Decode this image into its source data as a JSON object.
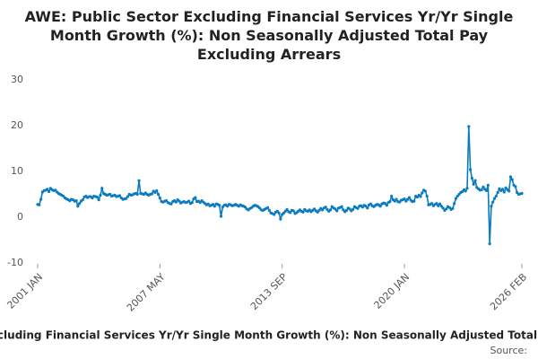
{
  "chart_data": {
    "type": "line",
    "title": "AWE: Public Sector Excluding Financial Services Yr/Yr Single Month Growth (%): Non Seasonally Adjusted Total Pay Excluding Arrears",
    "source": "Source:",
    "categories": [
      "2001 JAN",
      null,
      null,
      null,
      null,
      null,
      null,
      null,
      null,
      null,
      null,
      null,
      null,
      null,
      null,
      null,
      null,
      null,
      null,
      null,
      null,
      null,
      null,
      null,
      null,
      null,
      null,
      null,
      null,
      null,
      null,
      null,
      null,
      null,
      null,
      null,
      null,
      null,
      null,
      null,
      null,
      null,
      null,
      null,
      null,
      null,
      null,
      null,
      null,
      null,
      null,
      null,
      null,
      null,
      null,
      null,
      null,
      null,
      null,
      null,
      null,
      null,
      null,
      null,
      null,
      null,
      null,
      null,
      null,
      null,
      null,
      null,
      null,
      null,
      null,
      null,
      "2007 MAY",
      null,
      null,
      null,
      null,
      null,
      null,
      null,
      null,
      null,
      null,
      null,
      null,
      null,
      null,
      null,
      null,
      null,
      null,
      null,
      null,
      null,
      null,
      null,
      null,
      null,
      null,
      null,
      null,
      null,
      null,
      null,
      null,
      null,
      null,
      null,
      null,
      null,
      null,
      null,
      null,
      null,
      null,
      null,
      null,
      null,
      null,
      null,
      null,
      null,
      null,
      null,
      null,
      null,
      null,
      null,
      null,
      null,
      null,
      null,
      null,
      null,
      null,
      null,
      null,
      null,
      null,
      null,
      null,
      null,
      null,
      null,
      null,
      null,
      null,
      null,
      "2013 SEP",
      null,
      null,
      null,
      null,
      null,
      null,
      null,
      null,
      null,
      null,
      null,
      null,
      null,
      null,
      null,
      null,
      null,
      null,
      null,
      null,
      null,
      null,
      null,
      null,
      null,
      null,
      null,
      null,
      null,
      null,
      null,
      null,
      null,
      null,
      null,
      null,
      null,
      null,
      null,
      null,
      null,
      null,
      null,
      null,
      null,
      null,
      null,
      null,
      null,
      null,
      null,
      null,
      null,
      null,
      null,
      null,
      null,
      null,
      null,
      null,
      null,
      null,
      null,
      null,
      null,
      null,
      null,
      null,
      null,
      null,
      null,
      null,
      null,
      null,
      null,
      "2020 JAN",
      null,
      null,
      null,
      null,
      null,
      null,
      null,
      null,
      null,
      null,
      null,
      null,
      null,
      null,
      null,
      null,
      null,
      null,
      null,
      null,
      null,
      null,
      null,
      null,
      null,
      null,
      null,
      null,
      null,
      null,
      null,
      null,
      null,
      null,
      null,
      null,
      null,
      null,
      null,
      null,
      null,
      null,
      null,
      null,
      null,
      null,
      null,
      null,
      null,
      null,
      null,
      null,
      null,
      null,
      null,
      null,
      null,
      null,
      null,
      null,
      null,
      null,
      null,
      null,
      null,
      null,
      null,
      null,
      null,
      null,
      null,
      null,
      "2026 FEB"
    ],
    "series": [
      {
        "name": "AWE: Public Sector Excluding Financial Services Yr/Yr Single Month Growth (%): Non Seasonally Adjusted Total Pay Excluding Arrears",
        "color": "#0a7bc1",
        "values": [
          2.8,
          2.7,
          3.9,
          5.5,
          5.8,
          5.9,
          6.1,
          5.6,
          6.3,
          6.0,
          5.8,
          5.9,
          5.5,
          5.2,
          5.0,
          4.8,
          4.6,
          4.2,
          4.0,
          3.8,
          3.6,
          3.9,
          3.8,
          3.5,
          3.6,
          2.4,
          3.0,
          3.5,
          3.8,
          4.4,
          4.6,
          4.3,
          4.5,
          4.5,
          4.2,
          4.6,
          4.5,
          4.4,
          3.8,
          4.8,
          6.3,
          5.2,
          5.0,
          4.8,
          4.9,
          5.0,
          4.6,
          4.7,
          4.8,
          4.5,
          4.6,
          4.7,
          4.2,
          3.9,
          4.0,
          4.1,
          4.5,
          5.0,
          4.8,
          4.9,
          5.1,
          5.2,
          5.0,
          8.0,
          5.2,
          5.1,
          5.0,
          5.3,
          5.0,
          4.8,
          5.0,
          5.1,
          5.7,
          5.4,
          5.8,
          5.0,
          4.2,
          3.4,
          3.3,
          3.5,
          3.6,
          3.2,
          3.0,
          2.9,
          3.4,
          3.6,
          3.3,
          3.8,
          3.5,
          3.1,
          3.3,
          3.4,
          3.2,
          3.3,
          3.5,
          3.0,
          3.2,
          4.0,
          4.3,
          3.4,
          3.5,
          3.2,
          3.6,
          3.3,
          3.0,
          2.7,
          2.9,
          2.5,
          2.6,
          2.8,
          2.4,
          2.9,
          2.8,
          2.6,
          0.2,
          2.2,
          2.6,
          2.7,
          2.4,
          2.8,
          2.7,
          2.5,
          2.6,
          2.8,
          2.6,
          2.4,
          2.7,
          2.5,
          2.4,
          2.2,
          1.8,
          1.6,
          1.9,
          2.1,
          2.4,
          2.6,
          2.5,
          2.3,
          2.0,
          1.6,
          1.5,
          1.7,
          1.9,
          2.1,
          1.5,
          0.9,
          0.8,
          0.6,
          1.1,
          1.3,
          0.9,
          -0.4,
          0.6,
          0.9,
          1.3,
          1.7,
          1.2,
          1.0,
          1.5,
          1.4,
          0.8,
          1.0,
          1.3,
          1.6,
          1.3,
          1.1,
          1.7,
          1.4,
          1.3,
          1.6,
          1.2,
          1.5,
          1.8,
          1.4,
          1.1,
          1.5,
          1.9,
          1.6,
          2.0,
          2.2,
          1.7,
          1.3,
          1.6,
          2.3,
          2.0,
          1.8,
          1.4,
          2.0,
          2.1,
          2.3,
          1.6,
          1.2,
          1.5,
          2.0,
          1.8,
          1.4,
          1.7,
          2.3,
          2.1,
          1.9,
          2.4,
          2.5,
          2.2,
          2.6,
          2.4,
          2.0,
          2.7,
          2.9,
          2.5,
          2.3,
          2.6,
          2.8,
          2.7,
          2.4,
          2.9,
          3.1,
          3.0,
          2.6,
          3.2,
          3.4,
          4.6,
          3.8,
          3.5,
          3.9,
          3.4,
          3.3,
          3.7,
          3.8,
          4.0,
          3.5,
          3.9,
          4.3,
          3.7,
          3.4,
          3.5,
          4.6,
          4.4,
          4.8,
          4.5,
          5.3,
          5.9,
          5.7,
          4.6,
          2.7,
          2.8,
          3.0,
          2.5,
          2.8,
          3.0,
          2.5,
          2.9,
          2.4,
          2.0,
          1.5,
          1.8,
          2.3,
          2.1,
          1.7,
          1.9,
          3.0,
          4.1,
          4.6,
          5.0,
          5.4,
          5.6,
          6.0,
          5.7,
          6.3,
          19.8,
          10.4,
          8.5,
          7.2,
          8.0,
          6.5,
          6.2,
          5.9,
          6.0,
          6.6,
          6.1,
          5.8,
          7.0,
          -5.8,
          2.4,
          3.3,
          4.1,
          4.6,
          5.4,
          6.2,
          5.8,
          6.1,
          5.5,
          6.4,
          6.0,
          5.7,
          8.8,
          8.2,
          7.0,
          6.7,
          5.4,
          5.0,
          5.1,
          5.2
        ]
      }
    ],
    "ylim": [
      -10,
      30
    ],
    "yticks": [
      -10,
      0,
      10,
      20,
      30
    ],
    "grid": false
  }
}
